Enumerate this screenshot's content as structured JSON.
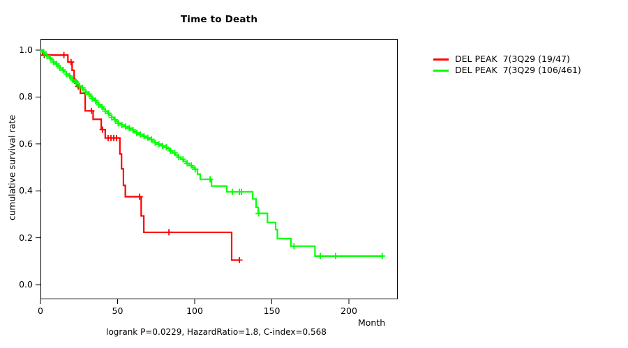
{
  "title": "Time to Death",
  "y_axis": {
    "label": "cumulative survival rate",
    "ticks": [
      {
        "label": "0.0",
        "value": 0.0
      },
      {
        "label": "0.2",
        "value": 0.2
      },
      {
        "label": "0.4",
        "value": 0.4
      },
      {
        "label": "0.6",
        "value": 0.6
      },
      {
        "label": "0.8",
        "value": 0.8
      },
      {
        "label": "1.0",
        "value": 1.0
      }
    ]
  },
  "x_axis": {
    "label": "Month",
    "ticks": [
      {
        "label": "0",
        "value": 0
      },
      {
        "label": "50",
        "value": 50
      },
      {
        "label": "100",
        "value": 100
      },
      {
        "label": "150",
        "value": 150
      },
      {
        "label": "200",
        "value": 200
      }
    ]
  },
  "annotation": "logrank P=0.0229, HazardRatio=1.8, C-index=0.568",
  "legend": {
    "items": [
      {
        "label": "DEL PEAK  7(3Q29 (19/47)",
        "color": "#ff0000"
      },
      {
        "label": "DEL PEAK  7(3Q29 (106/461)",
        "color": "#00ff00"
      }
    ]
  },
  "colors": {
    "axis": "#000000",
    "background": "#ffffff"
  },
  "chart_data": {
    "type": "line",
    "subtype": "kaplan-meier-step",
    "title": "Time to Death",
    "xlabel": "Month",
    "ylabel": "cumulative survival rate",
    "xlim": [
      0,
      231
    ],
    "ylim": [
      0,
      1.05
    ],
    "x_ticks": [
      0,
      50,
      100,
      150,
      200
    ],
    "y_ticks": [
      0.0,
      0.2,
      0.4,
      0.6,
      0.8,
      1.0
    ],
    "grid": false,
    "legend_position": "right-outside",
    "annotation": "logrank P=0.0229, HazardRatio=1.8, C-index=0.568",
    "series": [
      {
        "name": "DEL PEAK  7(3Q29 (19/47)",
        "color": "#ff0000",
        "steps": [
          [
            0,
            1.0
          ],
          [
            1.4,
            0.979
          ],
          [
            17.8,
            0.949
          ],
          [
            20.5,
            0.914
          ],
          [
            21.8,
            0.868
          ],
          [
            23.5,
            0.845
          ],
          [
            25.9,
            0.816
          ],
          [
            29,
            0.741
          ],
          [
            34.1,
            0.705
          ],
          [
            39.4,
            0.661
          ],
          [
            42,
            0.625
          ],
          [
            51.5,
            0.557
          ],
          [
            52.6,
            0.494
          ],
          [
            53.8,
            0.423
          ],
          [
            55,
            0.375
          ],
          [
            65.3,
            0.293
          ],
          [
            67,
            0.223
          ],
          [
            124,
            0.105
          ]
        ],
        "end_x": 129.5,
        "censor_x": [
          2.5,
          15.2,
          19.8,
          22.3,
          24.5,
          33,
          40.3,
          43.9,
          45.7,
          47.5,
          49.3,
          64.3,
          83.3,
          129
        ]
      },
      {
        "name": "DEL PEAK  7(3Q29 (106/461)",
        "color": "#00ff00",
        "steps": [
          [
            0,
            1.0
          ],
          [
            1.4,
            0.992
          ],
          [
            2.8,
            0.983
          ],
          [
            4.2,
            0.975
          ],
          [
            5.6,
            0.966
          ],
          [
            7,
            0.958
          ],
          [
            8.4,
            0.949
          ],
          [
            9.8,
            0.941
          ],
          [
            11.2,
            0.932
          ],
          [
            12.6,
            0.924
          ],
          [
            14,
            0.915
          ],
          [
            15.4,
            0.907
          ],
          [
            16.8,
            0.898
          ],
          [
            18.2,
            0.89
          ],
          [
            19.6,
            0.881
          ],
          [
            21,
            0.873
          ],
          [
            22.4,
            0.864
          ],
          [
            23.8,
            0.856
          ],
          [
            25.2,
            0.847
          ],
          [
            26.6,
            0.839
          ],
          [
            28,
            0.83
          ],
          [
            29.4,
            0.821
          ],
          [
            30.8,
            0.812
          ],
          [
            32.2,
            0.803
          ],
          [
            33.6,
            0.794
          ],
          [
            35,
            0.785
          ],
          [
            36.4,
            0.776
          ],
          [
            37.8,
            0.767
          ],
          [
            39.2,
            0.758
          ],
          [
            40.6,
            0.749
          ],
          [
            42,
            0.74
          ],
          [
            43.4,
            0.731
          ],
          [
            44.8,
            0.722
          ],
          [
            46.2,
            0.713
          ],
          [
            47.6,
            0.704
          ],
          [
            49,
            0.696
          ],
          [
            50.4,
            0.688
          ],
          [
            52.4,
            0.681
          ],
          [
            54.4,
            0.674
          ],
          [
            56.4,
            0.667
          ],
          [
            58.4,
            0.66
          ],
          [
            60.4,
            0.653
          ],
          [
            62.4,
            0.647
          ],
          [
            64.4,
            0.64
          ],
          [
            66.4,
            0.633
          ],
          [
            68.4,
            0.626
          ],
          [
            70.4,
            0.619
          ],
          [
            72.4,
            0.612
          ],
          [
            74.4,
            0.605
          ],
          [
            76.4,
            0.599
          ],
          [
            78.4,
            0.592
          ],
          [
            80.2,
            0.586
          ],
          [
            82,
            0.58
          ],
          [
            83.8,
            0.571
          ],
          [
            85.6,
            0.562
          ],
          [
            87.4,
            0.553
          ],
          [
            89.2,
            0.544
          ],
          [
            91,
            0.535
          ],
          [
            92.8,
            0.526
          ],
          [
            94.6,
            0.517
          ],
          [
            96.4,
            0.508
          ],
          [
            98.2,
            0.5
          ],
          [
            100,
            0.492
          ],
          [
            101.8,
            0.471
          ],
          [
            103.6,
            0.449
          ],
          [
            110.9,
            0.42
          ],
          [
            120.8,
            0.396
          ],
          [
            137.6,
            0.366
          ],
          [
            139.8,
            0.33
          ],
          [
            141.2,
            0.304
          ],
          [
            147.2,
            0.265
          ],
          [
            152.5,
            0.235
          ],
          [
            153.6,
            0.196
          ],
          [
            162.4,
            0.164
          ],
          [
            178,
            0.122
          ]
        ],
        "end_x": 222,
        "censor_x": [
          2.1,
          4.2,
          6.3,
          8.4,
          10.5,
          12.6,
          14.7,
          16.8,
          18.9,
          21,
          23.1,
          25.2,
          27.3,
          29.4,
          31.5,
          33.6,
          35.7,
          37.8,
          39.9,
          42,
          44.1,
          46.2,
          48.3,
          50.4,
          52.8,
          55.2,
          57.6,
          60,
          62.4,
          64.8,
          67.2,
          69.6,
          72,
          74.4,
          76.8,
          79.2,
          81.6,
          84.3,
          87,
          89.7,
          92.4,
          95.1,
          97.8,
          100.3,
          110,
          124.4,
          129,
          130.3,
          141.5,
          164.4,
          181.5,
          191.4,
          221.6
        ]
      }
    ]
  }
}
